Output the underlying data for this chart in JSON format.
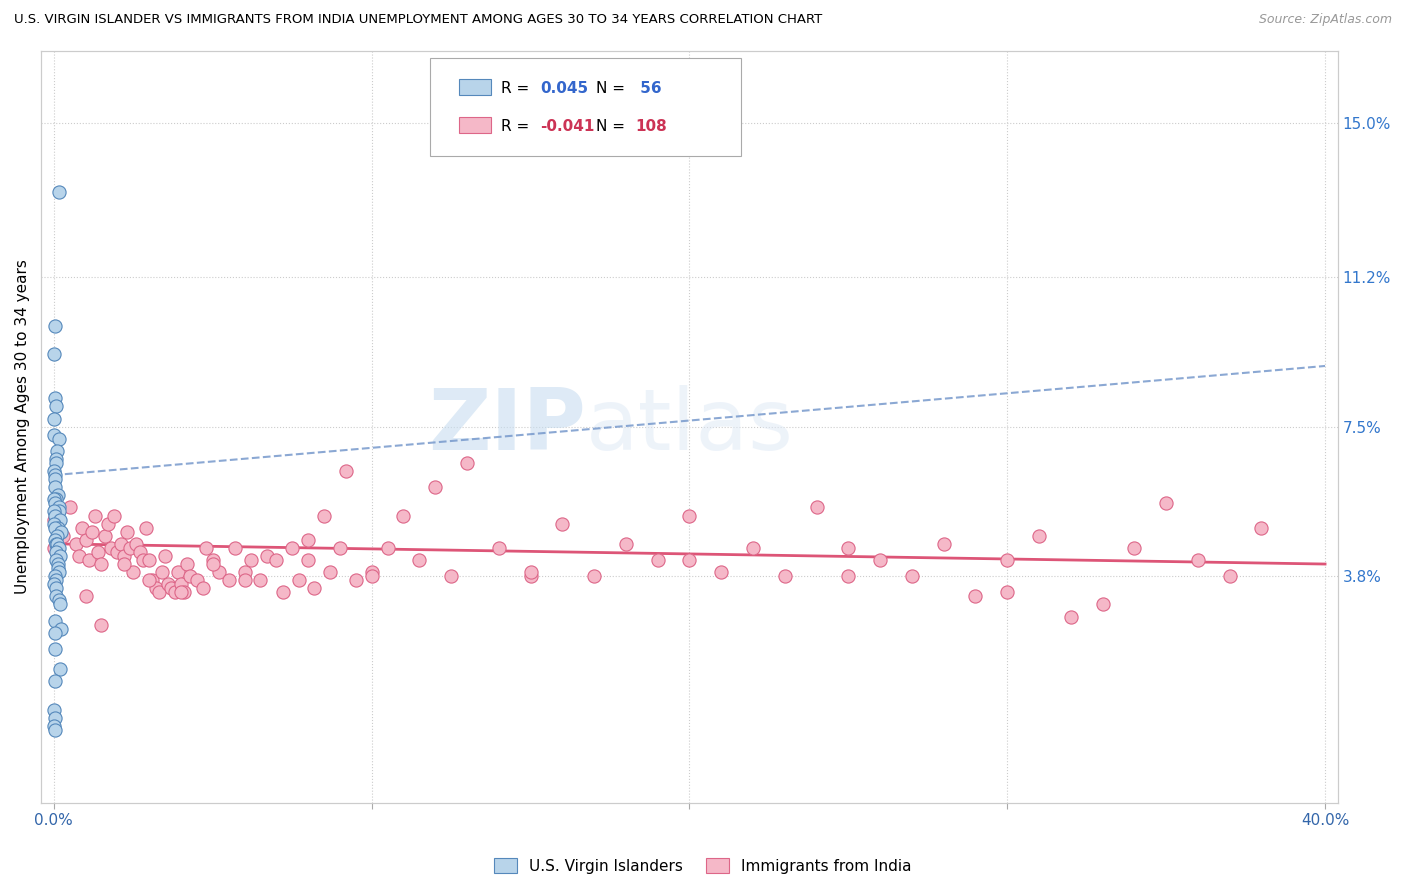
{
  "title": "U.S. VIRGIN ISLANDER VS IMMIGRANTS FROM INDIA UNEMPLOYMENT AMONG AGES 30 TO 34 YEARS CORRELATION CHART",
  "source": "Source: ZipAtlas.com",
  "ylabel": "Unemployment Among Ages 30 to 34 years",
  "ytick_labels": [
    "15.0%",
    "11.2%",
    "7.5%",
    "3.8%"
  ],
  "ytick_values": [
    0.15,
    0.112,
    0.075,
    0.038
  ],
  "xlim": [
    0.0,
    0.4
  ],
  "ylim": [
    -0.018,
    0.168
  ],
  "blue_R": 0.045,
  "blue_N": 56,
  "pink_R": -0.041,
  "pink_N": 108,
  "blue_color": "#b8d4ea",
  "pink_color": "#f5b8c8",
  "blue_edge_color": "#5588bb",
  "pink_edge_color": "#dd6688",
  "blue_line_color": "#7799cc",
  "pink_line_color": "#dd5577",
  "legend_label_blue": "U.S. Virgin Islanders",
  "legend_label_pink": "Immigrants from India",
  "watermark_zip": "ZIP",
  "watermark_atlas": "atlas",
  "blue_y": [
    0.133,
    0.1,
    0.093,
    0.082,
    0.08,
    0.077,
    0.073,
    0.072,
    0.069,
    0.067,
    0.066,
    0.064,
    0.063,
    0.062,
    0.06,
    0.058,
    0.057,
    0.057,
    0.056,
    0.055,
    0.054,
    0.054,
    0.053,
    0.052,
    0.051,
    0.05,
    0.05,
    0.049,
    0.048,
    0.047,
    0.046,
    0.046,
    0.045,
    0.044,
    0.043,
    0.042,
    0.041,
    0.04,
    0.039,
    0.038,
    0.037,
    0.036,
    0.035,
    0.033,
    0.032,
    0.031,
    0.027,
    0.025,
    0.024,
    0.02,
    0.015,
    0.012,
    0.005,
    0.003,
    0.001,
    0.0
  ],
  "pink_x": [
    0.0,
    0.0,
    0.003,
    0.005,
    0.007,
    0.008,
    0.009,
    0.01,
    0.011,
    0.012,
    0.013,
    0.014,
    0.015,
    0.016,
    0.017,
    0.018,
    0.019,
    0.02,
    0.021,
    0.022,
    0.023,
    0.024,
    0.025,
    0.026,
    0.027,
    0.028,
    0.029,
    0.03,
    0.031,
    0.032,
    0.033,
    0.034,
    0.035,
    0.036,
    0.037,
    0.038,
    0.039,
    0.04,
    0.041,
    0.042,
    0.043,
    0.045,
    0.047,
    0.048,
    0.05,
    0.052,
    0.055,
    0.057,
    0.06,
    0.062,
    0.065,
    0.067,
    0.07,
    0.072,
    0.075,
    0.077,
    0.08,
    0.082,
    0.085,
    0.087,
    0.09,
    0.092,
    0.095,
    0.1,
    0.105,
    0.11,
    0.115,
    0.12,
    0.125,
    0.13,
    0.14,
    0.15,
    0.16,
    0.17,
    0.18,
    0.19,
    0.2,
    0.21,
    0.22,
    0.23,
    0.24,
    0.25,
    0.26,
    0.27,
    0.28,
    0.29,
    0.3,
    0.31,
    0.32,
    0.33,
    0.34,
    0.35,
    0.36,
    0.37,
    0.38,
    0.01,
    0.015,
    0.022,
    0.03,
    0.04,
    0.05,
    0.06,
    0.08,
    0.1,
    0.15,
    0.2,
    0.25,
    0.3
  ],
  "pink_y": [
    0.052,
    0.045,
    0.048,
    0.055,
    0.046,
    0.043,
    0.05,
    0.047,
    0.042,
    0.049,
    0.053,
    0.044,
    0.041,
    0.048,
    0.051,
    0.045,
    0.053,
    0.044,
    0.046,
    0.043,
    0.049,
    0.045,
    0.039,
    0.046,
    0.044,
    0.042,
    0.05,
    0.042,
    0.037,
    0.035,
    0.034,
    0.039,
    0.043,
    0.036,
    0.035,
    0.034,
    0.039,
    0.036,
    0.034,
    0.041,
    0.038,
    0.037,
    0.035,
    0.045,
    0.042,
    0.039,
    0.037,
    0.045,
    0.039,
    0.042,
    0.037,
    0.043,
    0.042,
    0.034,
    0.045,
    0.037,
    0.042,
    0.035,
    0.053,
    0.039,
    0.045,
    0.064,
    0.037,
    0.039,
    0.045,
    0.053,
    0.042,
    0.06,
    0.038,
    0.066,
    0.045,
    0.038,
    0.051,
    0.038,
    0.046,
    0.042,
    0.053,
    0.039,
    0.045,
    0.038,
    0.055,
    0.045,
    0.042,
    0.038,
    0.046,
    0.033,
    0.042,
    0.048,
    0.028,
    0.031,
    0.045,
    0.056,
    0.042,
    0.038,
    0.05,
    0.033,
    0.026,
    0.041,
    0.037,
    0.034,
    0.041,
    0.037,
    0.047,
    0.038,
    0.039,
    0.042,
    0.038,
    0.034
  ],
  "blue_line_x0": 0.0,
  "blue_line_y0": 0.063,
  "blue_line_x1": 0.4,
  "blue_line_y1": 0.09,
  "pink_line_x0": 0.0,
  "pink_line_y0": 0.046,
  "pink_line_x1": 0.4,
  "pink_line_y1": 0.041
}
